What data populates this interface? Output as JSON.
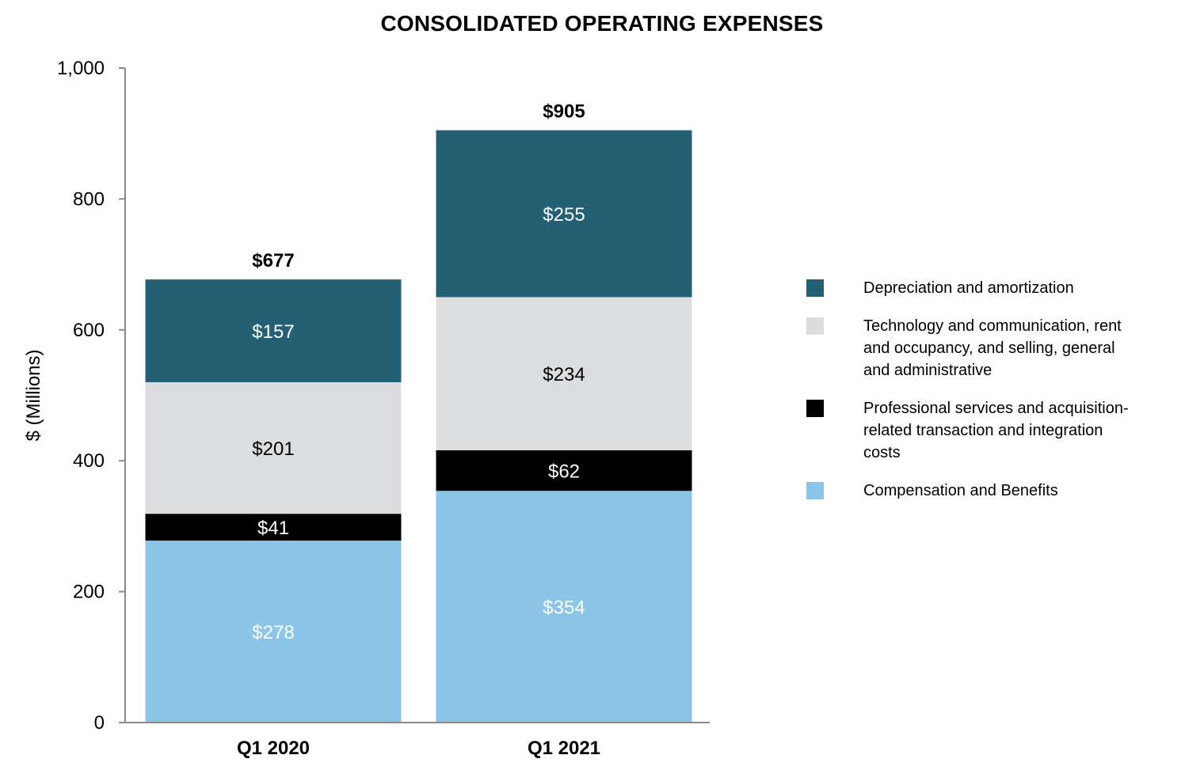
{
  "chart_data": {
    "type": "bar",
    "stacked": true,
    "title": "CONSOLIDATED OPERATING EXPENSES",
    "xlabel": "",
    "ylabel": "$ (Millions)",
    "ylim": [
      0,
      1000
    ],
    "yticks": [
      0,
      200,
      400,
      600,
      800,
      1000
    ],
    "ytick_labels": [
      "0",
      "200",
      "400",
      "600",
      "800",
      "1,000"
    ],
    "categories": [
      "Q1 2020",
      "Q1 2021"
    ],
    "totals": [
      677,
      905
    ],
    "total_labels": [
      "$677",
      "$905"
    ],
    "series": [
      {
        "name": "Compensation and Benefits",
        "color": "#8DC5E8",
        "label_color": "#ffffff",
        "values": [
          278,
          354
        ],
        "labels": [
          "$278",
          "$354"
        ]
      },
      {
        "name": "Professional services and acquisition-related transaction and integration costs",
        "color": "#000000",
        "label_color": "#ffffff",
        "values": [
          41,
          62
        ],
        "labels": [
          "$41",
          "$62"
        ]
      },
      {
        "name": "Technology and communication, rent and occupancy, and selling, general and administrative",
        "color": "#DCDDDF",
        "label_color": "#000000",
        "values": [
          201,
          234
        ],
        "labels": [
          "$201",
          "$234"
        ]
      },
      {
        "name": "Depreciation and amortization",
        "color": "#246073",
        "label_color": "#ffffff",
        "values": [
          157,
          255
        ],
        "labels": [
          "$157",
          "$255"
        ]
      }
    ],
    "legend": {
      "position": "right",
      "items": [
        {
          "label": "Depreciation and amortization",
          "color": "#246073"
        },
        {
          "label": "Technology and communication, rent and occupancy, and selling, general and administrative",
          "color": "#DCDDDF"
        },
        {
          "label": "Professional services and acquisition-related transaction and integration costs",
          "color": "#000000"
        },
        {
          "label": "Compensation and Benefits",
          "color": "#8DC5E8"
        }
      ]
    }
  }
}
